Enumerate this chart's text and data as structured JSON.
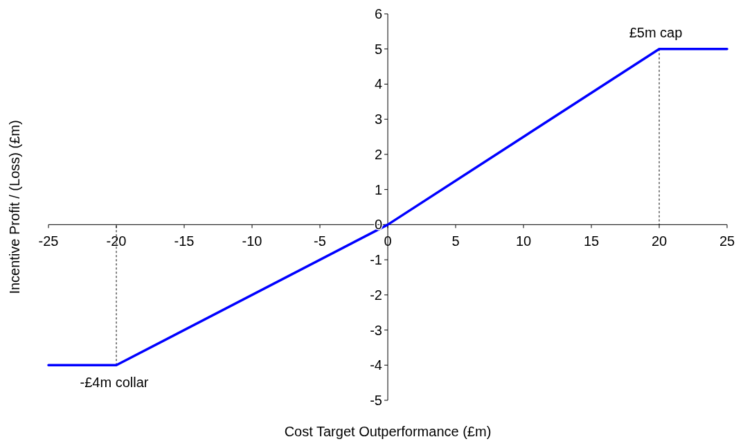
{
  "chart_data": {
    "type": "line",
    "xlabel": "Cost Target Outperformance (£m)",
    "ylabel": "Incentive Profit / (Loss) (£m)",
    "x": [
      -25,
      -20,
      0,
      20,
      25
    ],
    "series": [
      {
        "color": "#0000ff",
        "values": [
          -4,
          -4,
          0,
          5,
          5
        ]
      }
    ],
    "xlim": [
      -25,
      25
    ],
    "xticks": [
      -25,
      -20,
      -15,
      -10,
      -5,
      0,
      5,
      10,
      15,
      20,
      25
    ],
    "ylim": [
      -5,
      6
    ],
    "yticks": [
      -5,
      -4,
      -3,
      -2,
      -1,
      0,
      1,
      2,
      3,
      4,
      5,
      6
    ],
    "annotations": [
      {
        "text": "-£4m collar",
        "x": -20,
        "y": -4
      },
      {
        "text": "£5m cap",
        "x": 20,
        "y": 5
      }
    ],
    "marker": "none",
    "line_style": "solid",
    "grid": false
  }
}
